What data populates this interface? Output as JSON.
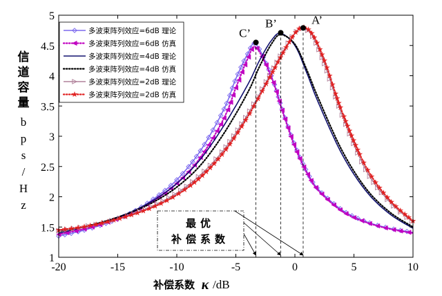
{
  "chart_data": {
    "type": "line",
    "xlabel_prefix": "补偿系数",
    "xlabel_symbol": "κ",
    "xlabel_unit": "/dB",
    "ylabel_zh": [
      "信",
      "道",
      "容",
      "量"
    ],
    "ylabel_unit": [
      "b",
      "p",
      "s",
      "/",
      "H",
      "z"
    ],
    "xlim": [
      -20,
      10
    ],
    "ylim": [
      1,
      5
    ],
    "xticks": [
      "-20",
      "-15",
      "-10",
      "-5",
      "0",
      "5",
      "10"
    ],
    "yticks": [
      "1",
      "1.5",
      "2",
      "2.5",
      "3",
      "3.5",
      "4",
      "4.5",
      "5"
    ],
    "xtick_values": [
      -20,
      -15,
      -10,
      -5,
      0,
      5,
      10
    ],
    "ytick_values": [
      1,
      1.5,
      2,
      2.5,
      3,
      3.5,
      4,
      4.5,
      5
    ],
    "grid": false,
    "legend_position": "top-left",
    "series": [
      {
        "name": "多波束阵列效应=6dB 理论",
        "color": "#7b68ee",
        "style": "solid",
        "marker": "diamond-open",
        "x": [
          -20,
          -18,
          -16,
          -14,
          -12,
          -10,
          -8,
          -6,
          -5,
          -4,
          -3.3,
          -2,
          -1,
          0,
          1,
          2,
          4,
          6,
          8,
          10
        ],
        "y": [
          1.35,
          1.44,
          1.56,
          1.72,
          1.96,
          2.28,
          2.76,
          3.45,
          3.95,
          4.36,
          4.52,
          4.0,
          3.4,
          2.85,
          2.42,
          2.12,
          1.78,
          1.59,
          1.48,
          1.41
        ]
      },
      {
        "name": "多波束阵列效应=6dB 仿真",
        "color": "#c000c0",
        "style": "dotted",
        "marker": "triangle-left",
        "x": [
          -20,
          -18,
          -16,
          -14,
          -12,
          -10,
          -8,
          -6,
          -5,
          -4,
          -3.3,
          -2,
          -1,
          0,
          1,
          2,
          4,
          6,
          8,
          10
        ],
        "y": [
          1.38,
          1.46,
          1.57,
          1.72,
          1.93,
          2.22,
          2.65,
          3.3,
          3.8,
          4.28,
          4.47,
          3.98,
          3.38,
          2.82,
          2.4,
          2.1,
          1.76,
          1.58,
          1.47,
          1.4
        ]
      },
      {
        "name": "多波束阵列效应=4dB 理论",
        "color": "#10106e",
        "style": "solid",
        "marker": "none",
        "x": [
          -20,
          -18,
          -16,
          -14,
          -12,
          -10,
          -8,
          -6,
          -4,
          -3,
          -2,
          -1.2,
          0,
          1,
          2,
          4,
          6,
          8,
          10
        ],
        "y": [
          1.4,
          1.49,
          1.6,
          1.74,
          1.94,
          2.22,
          2.62,
          3.18,
          3.85,
          4.25,
          4.58,
          4.7,
          4.5,
          4.05,
          3.55,
          2.7,
          2.1,
          1.72,
          1.48
        ]
      },
      {
        "name": "多波束阵列效应=4dB 仿真",
        "color": "#000000",
        "style": "dotted",
        "marker": "none",
        "x": [
          -20,
          -18,
          -16,
          -14,
          -12,
          -10,
          -8,
          -6,
          -4,
          -3,
          -2,
          -1.2,
          0,
          1,
          2,
          4,
          6,
          8,
          10
        ],
        "y": [
          1.43,
          1.5,
          1.6,
          1.73,
          1.91,
          2.16,
          2.52,
          3.05,
          3.72,
          4.15,
          4.52,
          4.68,
          4.52,
          4.1,
          3.62,
          2.76,
          2.14,
          1.75,
          1.5
        ]
      },
      {
        "name": "多波束阵列效应=2dB 理论",
        "color": "#b0809a",
        "style": "solid",
        "marker": "triangle-right-open",
        "x": [
          -20,
          -18,
          -16,
          -14,
          -12,
          -10,
          -8,
          -6,
          -4,
          -2,
          -1,
          0,
          0.7,
          1.5,
          2.5,
          4,
          6,
          8,
          10
        ],
        "y": [
          1.44,
          1.5,
          1.58,
          1.7,
          1.85,
          2.06,
          2.36,
          2.78,
          3.36,
          4.05,
          4.4,
          4.7,
          4.78,
          4.65,
          4.2,
          3.35,
          2.45,
          1.92,
          1.58
        ]
      },
      {
        "name": "多波束阵列效应=2dB 仿真",
        "color": "#e02020",
        "style": "dotted",
        "marker": "star",
        "x": [
          -20,
          -18,
          -16,
          -14,
          -12,
          -10,
          -8,
          -6,
          -4,
          -2,
          -1,
          0,
          0.7,
          1.5,
          2.5,
          4,
          6,
          8,
          10
        ],
        "y": [
          1.45,
          1.5,
          1.58,
          1.69,
          1.83,
          2.03,
          2.32,
          2.74,
          3.32,
          4.02,
          4.38,
          4.7,
          4.8,
          4.68,
          4.25,
          3.4,
          2.5,
          1.95,
          1.6
        ]
      }
    ],
    "peaks": [
      {
        "label": "C’",
        "x": -3.3,
        "y": 4.55
      },
      {
        "label": "B’",
        "x": -1.2,
        "y": 4.71
      },
      {
        "label": "A’",
        "x": 0.7,
        "y": 4.79
      }
    ],
    "annotation_box": {
      "line1": "最优",
      "line2": "补偿系数"
    },
    "colors": {
      "axis": "#000000",
      "background": "#ffffff"
    }
  }
}
